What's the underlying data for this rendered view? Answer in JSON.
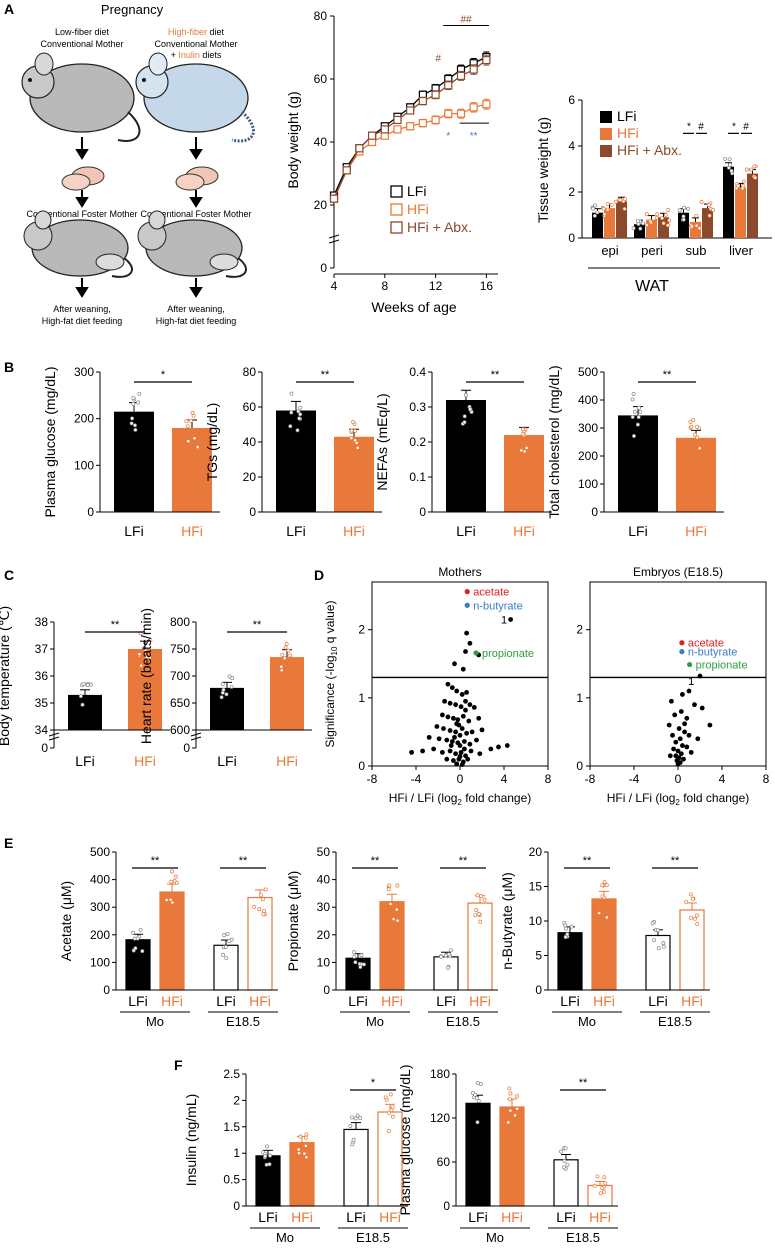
{
  "colors": {
    "lfi": "#000000",
    "hfi": "#E8793A",
    "abx": "#8B4A2B",
    "blue": "#3A7BC8",
    "green": "#2E9E3E",
    "red": "#E02020"
  },
  "panels": {
    "A": "A",
    "B": "B",
    "C": "C",
    "D": "D",
    "E": "E",
    "F": "F"
  },
  "schematic": {
    "title": "Pregnancy",
    "left_diet": "Low-fiber diet",
    "left_mother": "Conventional Mother",
    "right_diet_a": "High-fiber",
    "right_diet_b": " diet",
    "right_mother": "Conventional Mother",
    "right_plus": "+ ",
    "right_inulin": "Inulin",
    "right_diets": " diets",
    "foster": "Conventional Foster Mother",
    "after1": "After weaning,",
    "after2": "High-fat diet feeding"
  },
  "chart_data": [
    {
      "id": "A_bodyweight",
      "type": "line",
      "title": "",
      "xlabel": "Weeks of age",
      "ylabel": "Body weight (g)",
      "xlim": [
        4,
        17
      ],
      "ylim": [
        0,
        80
      ],
      "axis_break": true,
      "x_ticks": [
        4,
        8,
        12,
        16
      ],
      "y_ticks": [
        0,
        20,
        40,
        60,
        80
      ],
      "x": [
        4,
        5,
        6,
        7,
        8,
        9,
        10,
        11,
        12,
        13,
        14,
        15,
        16
      ],
      "series": [
        {
          "name": "LFi",
          "values": [
            23,
            32,
            38,
            42,
            45,
            48,
            51,
            55,
            57,
            60,
            63,
            65,
            67
          ]
        },
        {
          "name": "HFi",
          "values": [
            22,
            31,
            37,
            40,
            42,
            44,
            45,
            46,
            47,
            49,
            49,
            51,
            52
          ]
        },
        {
          "name": "HFi + Abx.",
          "values": [
            22,
            31,
            38,
            42,
            44,
            47,
            50,
            53,
            55,
            58,
            61,
            63,
            66
          ]
        }
      ],
      "annotations": [
        "#",
        "##",
        "*",
        "**"
      ]
    },
    {
      "id": "A_tissue",
      "type": "bar",
      "xlabel": "",
      "ylabel": "Tissue weight (g)",
      "ylim": [
        0,
        6
      ],
      "y_ticks": [
        0,
        2,
        4,
        6
      ],
      "categories": [
        "epi",
        "peri",
        "sub",
        "liver"
      ],
      "group_label": "WAT",
      "series": [
        {
          "name": "LFi",
          "values": [
            1.1,
            0.6,
            1.1,
            3.1
          ]
        },
        {
          "name": "HFi",
          "values": [
            1.3,
            0.8,
            0.7,
            2.2
          ]
        },
        {
          "name": "HFi + Abx.",
          "values": [
            1.6,
            0.9,
            1.3,
            2.8
          ]
        }
      ],
      "annotations": [
        "*",
        "#",
        "*",
        "#"
      ]
    },
    {
      "id": "B_glucose",
      "type": "bar",
      "ylabel": "Plasma glucose (mg/dL)",
      "ylim": [
        0,
        300
      ],
      "y_ticks": [
        0,
        100,
        200,
        300
      ],
      "categories": [
        "LFi",
        "HFi"
      ],
      "values": [
        215,
        180
      ],
      "sig": "*"
    },
    {
      "id": "B_tgs",
      "type": "bar",
      "ylabel": "TGs (mg/dL)",
      "ylim": [
        0,
        80
      ],
      "y_ticks": [
        0,
        20,
        40,
        60,
        80
      ],
      "categories": [
        "LFi",
        "HFi"
      ],
      "values": [
        58,
        43
      ],
      "sig": "**"
    },
    {
      "id": "B_nefas",
      "type": "bar",
      "ylabel": "NEFAs (mEq/L)",
      "ylim": [
        0,
        0.4
      ],
      "y_ticks": [
        0,
        0.1,
        0.2,
        0.3,
        0.4
      ],
      "y_tick_labels": [
        "0",
        "0.1",
        "0.2",
        "0.3",
        "0.4"
      ],
      "categories": [
        "LFi",
        "HFi"
      ],
      "values": [
        0.32,
        0.22
      ],
      "sig": "**"
    },
    {
      "id": "B_chol",
      "type": "bar",
      "ylabel": "Total cholesterol (mg/dL)",
      "ylim": [
        0,
        500
      ],
      "y_ticks": [
        0,
        100,
        200,
        300,
        400,
        500
      ],
      "categories": [
        "LFi",
        "HFi"
      ],
      "values": [
        345,
        265
      ],
      "sig": "**"
    },
    {
      "id": "C_temp",
      "type": "bar",
      "ylabel": "Body temperature (℃)",
      "ylim": [
        34,
        38
      ],
      "axis_break": true,
      "y_ticks": [
        34,
        35,
        36,
        37,
        38
      ],
      "y_tick_labels": [
        "34",
        "35",
        "36",
        "37",
        "38"
      ],
      "zero_label": "0",
      "categories": [
        "LFi",
        "HFi"
      ],
      "values": [
        35.3,
        37.0
      ],
      "sig": "**"
    },
    {
      "id": "C_hr",
      "type": "bar",
      "ylabel": "Heart rate (beats/min)",
      "ylim": [
        600,
        800
      ],
      "axis_break": true,
      "y_ticks": [
        600,
        650,
        700,
        750,
        800
      ],
      "zero_label": "0",
      "categories": [
        "LFi",
        "HFi"
      ],
      "values": [
        678,
        735
      ],
      "sig": "**"
    },
    {
      "id": "D_mothers",
      "type": "scatter",
      "title": "Mothers",
      "xlabel_pre": "HFi / LFi (log",
      "xlabel_sub": "2",
      "xlabel_post": " fold change)",
      "ylabel_pre": "Significance (-log",
      "ylabel_sub": "10",
      "ylabel_post": " q value)",
      "xlim": [
        -8,
        8
      ],
      "ylim": [
        0,
        2.7
      ],
      "x_ticks": [
        -8,
        -4,
        0,
        4,
        8
      ],
      "y_ticks": [
        0,
        1,
        2
      ],
      "threshold": 1.3,
      "labels": [
        {
          "text": "acetate",
          "color": "red",
          "x": 1.2,
          "y": 2.5
        },
        {
          "text": "n-butyrate",
          "color": "blue",
          "x": 1.2,
          "y": 2.3
        },
        {
          "text": "propionate",
          "color": "green",
          "x": 2.0,
          "y": 1.6
        }
      ],
      "marker_label": {
        "text": "1",
        "x": 4.0,
        "y": 2.15
      },
      "points": [
        [
          4.6,
          2.15
        ],
        [
          1.7,
          1.63
        ],
        [
          0.6,
          1.95
        ],
        [
          0.9,
          1.8
        ],
        [
          0.5,
          1.68
        ],
        [
          -0.5,
          1.5
        ],
        [
          0.3,
          1.42
        ],
        [
          -1.1,
          1.2
        ],
        [
          -0.7,
          1.15
        ],
        [
          -0.3,
          1.1
        ],
        [
          0.2,
          1.05
        ],
        [
          0.6,
          1.08
        ],
        [
          -1.4,
          0.95
        ],
        [
          -0.9,
          0.92
        ],
        [
          -0.4,
          0.9
        ],
        [
          0.1,
          0.87
        ],
        [
          0.5,
          0.82
        ],
        [
          0.9,
          0.9
        ],
        [
          1.3,
          0.86
        ],
        [
          -1.6,
          0.75
        ],
        [
          -1.1,
          0.72
        ],
        [
          -0.6,
          0.7
        ],
        [
          -0.2,
          0.68
        ],
        [
          0.3,
          0.73
        ],
        [
          0.8,
          0.66
        ],
        [
          1.7,
          0.7
        ],
        [
          -2.1,
          0.58
        ],
        [
          -1.5,
          0.55
        ],
        [
          -0.9,
          0.52
        ],
        [
          -0.4,
          0.5
        ],
        [
          0.2,
          0.55
        ],
        [
          0.6,
          0.48
        ],
        [
          1.1,
          0.5
        ],
        [
          2.0,
          0.53
        ],
        [
          -2.8,
          0.42
        ],
        [
          -1.9,
          0.4
        ],
        [
          -1.2,
          0.38
        ],
        [
          -0.7,
          0.36
        ],
        [
          -0.2,
          0.34
        ],
        [
          0.4,
          0.36
        ],
        [
          0.9,
          0.32
        ],
        [
          1.5,
          0.38
        ],
        [
          -3.4,
          0.22
        ],
        [
          -2.4,
          0.25
        ],
        [
          -1.6,
          0.2
        ],
        [
          -0.9,
          0.22
        ],
        [
          -0.4,
          0.18
        ],
        [
          0.1,
          0.2
        ],
        [
          0.5,
          0.15
        ],
        [
          1.0,
          0.22
        ],
        [
          1.8,
          0.18
        ],
        [
          3.5,
          0.28
        ],
        [
          -1.2,
          0.1
        ],
        [
          -0.6,
          0.08
        ],
        [
          -0.1,
          0.1
        ],
        [
          0.3,
          0.06
        ],
        [
          0.7,
          0.1
        ],
        [
          -0.3,
          0.03
        ],
        [
          0.2,
          0.02
        ],
        [
          -0.8,
          0.3
        ],
        [
          0.0,
          0.45
        ],
        [
          -0.3,
          0.62
        ],
        [
          0.4,
          0.25
        ],
        [
          0.0,
          0.14
        ],
        [
          -0.5,
          0.42
        ],
        [
          4.3,
          0.3
        ],
        [
          -4.4,
          0.2
        ],
        [
          2.8,
          0.25
        ],
        [
          -0.1,
          0.6
        ],
        [
          0.5,
          0.95
        ],
        [
          0.0,
          0.3
        ]
      ]
    },
    {
      "id": "D_embryos",
      "type": "scatter",
      "title": "Embryos (E18.5)",
      "xlabel_pre": "HFi / LFi (log",
      "xlabel_sub": "2",
      "xlabel_post": " fold change)",
      "xlim": [
        -8,
        8
      ],
      "ylim": [
        0,
        2.7
      ],
      "x_ticks": [
        -8,
        -4,
        0,
        4,
        8
      ],
      "y_ticks": [
        0,
        1,
        2
      ],
      "threshold": 1.3,
      "labels": [
        {
          "text": "acetate",
          "color": "red",
          "x": 0.9,
          "y": 1.75
        },
        {
          "text": "n-butyrate",
          "color": "blue",
          "x": 0.9,
          "y": 1.62
        },
        {
          "text": "propionate",
          "color": "green",
          "x": 1.6,
          "y": 1.43
        }
      ],
      "marker_label": {
        "text": "1",
        "x": 1.2,
        "y": 1.25
      },
      "points": [
        [
          2.0,
          1.32
        ],
        [
          1.0,
          1.1
        ],
        [
          1.5,
          0.9
        ],
        [
          2.2,
          0.85
        ],
        [
          0.4,
          1.05
        ],
        [
          -0.6,
          0.95
        ],
        [
          0.3,
          0.8
        ],
        [
          -0.3,
          0.75
        ],
        [
          0.8,
          0.7
        ],
        [
          -0.8,
          0.6
        ],
        [
          0.1,
          0.55
        ],
        [
          0.6,
          0.5
        ],
        [
          1.0,
          0.45
        ],
        [
          2.9,
          0.6
        ],
        [
          -0.5,
          0.45
        ],
        [
          0.2,
          0.4
        ],
        [
          -0.2,
          0.35
        ],
        [
          0.4,
          0.3
        ],
        [
          0.8,
          0.28
        ],
        [
          -0.4,
          0.25
        ],
        [
          0.0,
          0.22
        ],
        [
          0.3,
          0.18
        ],
        [
          -0.2,
          0.15
        ],
        [
          0.1,
          0.12
        ],
        [
          0.5,
          0.1
        ],
        [
          -0.1,
          0.08
        ],
        [
          0.2,
          0.05
        ],
        [
          0.0,
          0.03
        ],
        [
          1.2,
          0.2
        ],
        [
          -0.7,
          0.15
        ],
        [
          1.8,
          0.4
        ],
        [
          0.6,
          0.62
        ]
      ]
    },
    {
      "id": "E_acetate",
      "type": "bar",
      "ylabel": "Acetate (μM)",
      "ylim": [
        0,
        500
      ],
      "y_ticks": [
        0,
        100,
        200,
        300,
        400,
        500
      ],
      "categories": [
        "LFi",
        "HFi",
        "LFi",
        "HFi"
      ],
      "groups": [
        "Mo",
        "E18.5"
      ],
      "values": [
        182,
        355,
        162,
        335
      ],
      "sig": [
        "**",
        "**"
      ]
    },
    {
      "id": "E_propionate",
      "type": "bar",
      "ylabel": "Propionate (μM)",
      "ylim": [
        0,
        50
      ],
      "y_ticks": [
        0,
        10,
        20,
        30,
        40,
        50
      ],
      "categories": [
        "LFi",
        "HFi",
        "LFi",
        "HFi"
      ],
      "groups": [
        "Mo",
        "E18.5"
      ],
      "values": [
        11.5,
        32,
        12,
        31.5
      ],
      "sig": [
        "**",
        "**"
      ]
    },
    {
      "id": "E_butyrate",
      "type": "bar",
      "ylabel": "n-Butyrate (μM)",
      "ylim": [
        0,
        20
      ],
      "y_ticks": [
        0,
        5,
        10,
        15,
        20
      ],
      "categories": [
        "LFi",
        "HFi",
        "LFi",
        "HFi"
      ],
      "groups": [
        "Mo",
        "E18.5"
      ],
      "values": [
        8.3,
        13.2,
        7.9,
        11.6
      ],
      "sig": [
        "**",
        "**"
      ]
    },
    {
      "id": "F_insulin",
      "type": "bar",
      "ylabel": "Insulin (ng/mL)",
      "ylim": [
        0,
        2.5
      ],
      "y_ticks": [
        0,
        0.5,
        1,
        1.5,
        2,
        2.5
      ],
      "y_tick_labels": [
        "0",
        "0.5",
        "1",
        "1.5",
        "2",
        "2.5"
      ],
      "categories": [
        "LFi",
        "HFi",
        "LFi",
        "HFi"
      ],
      "groups": [
        "Mo",
        "E18.5"
      ],
      "values": [
        0.95,
        1.2,
        1.45,
        1.78
      ],
      "sig": [
        "",
        "*"
      ]
    },
    {
      "id": "F_glucose",
      "type": "bar",
      "ylabel": "Plasma glucose (mg/dL)",
      "ylim": [
        0,
        180
      ],
      "y_ticks": [
        0,
        60,
        120,
        180
      ],
      "categories": [
        "LFi",
        "HFi",
        "LFi",
        "HFi"
      ],
      "groups": [
        "Mo",
        "E18.5"
      ],
      "values": [
        140,
        135,
        63,
        28
      ],
      "sig": [
        "",
        "**"
      ]
    }
  ]
}
